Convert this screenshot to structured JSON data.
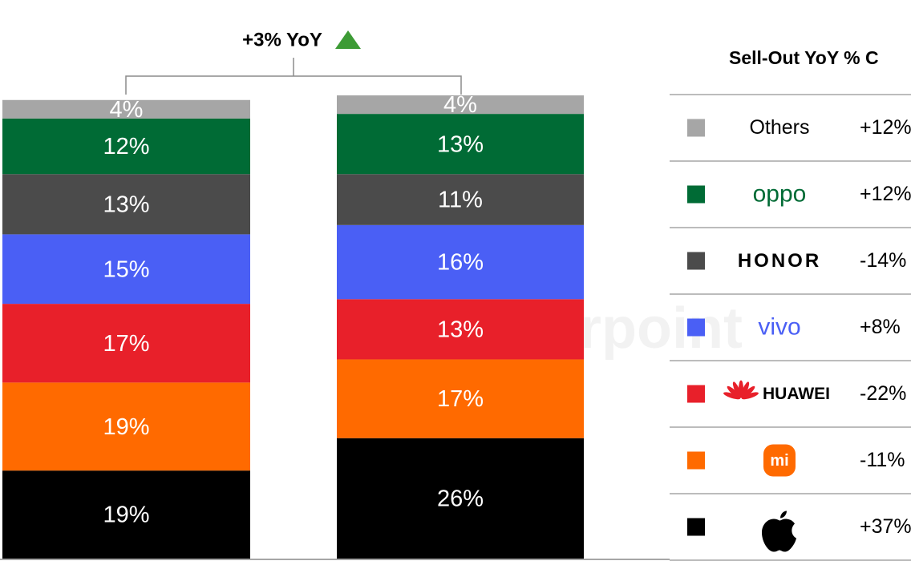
{
  "chart_data": {
    "type": "stacked-bar",
    "annotation": "+3% YoY",
    "watermark": "Counterpoint",
    "table_title": "Sell-Out YoY % C",
    "categories": [
      null,
      null
    ],
    "ylim": [
      0,
      100
    ],
    "series": [
      {
        "color": "#000000",
        "values": [
          19,
          26
        ],
        "value_labels": [
          "19%",
          "26%"
        ],
        "yoy": "+37%"
      },
      {
        "name": "mi",
        "color": "#ff6a00",
        "values": [
          19,
          17
        ],
        "value_labels": [
          "19%",
          "17%"
        ],
        "yoy": "-11%"
      },
      {
        "name": "HUAWEI",
        "color": "#e8202a",
        "values": [
          17,
          13
        ],
        "value_labels": [
          "17%",
          "13%"
        ],
        "yoy": "-22%"
      },
      {
        "name": "vivo",
        "color": "#4a5ff5",
        "values": [
          15,
          16
        ],
        "value_labels": [
          "15%",
          "16%"
        ],
        "yoy": "+8%"
      },
      {
        "name": "HONOR",
        "color": "#4b4b4b",
        "values": [
          13,
          11
        ],
        "value_labels": [
          "13%",
          "11%"
        ],
        "yoy": "-14%"
      },
      {
        "name": "oppo",
        "color": "#006b35",
        "values": [
          12,
          13
        ],
        "value_labels": [
          "12%",
          "13%"
        ],
        "yoy": "+12%"
      },
      {
        "name": "Others",
        "color": "#a6a6a6",
        "values": [
          4,
          4
        ],
        "value_labels": [
          "4%",
          "4%"
        ],
        "yoy": "+12%"
      }
    ]
  }
}
